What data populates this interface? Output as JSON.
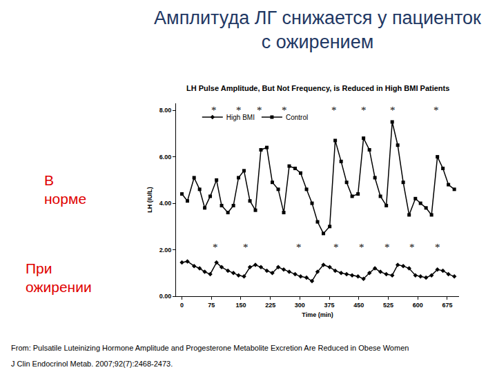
{
  "slide": {
    "title_lines": [
      "Амплитуда ЛГ снижается у пациенток",
      "с ожирением"
    ],
    "side_labels": [
      {
        "lines": [
          "В",
          "норме"
        ],
        "color": "#e00000"
      },
      {
        "lines": [
          "При",
          "ожирении"
        ],
        "color": "#e00000"
      }
    ],
    "citation": [
      "From: Pulsatile Luteinizing Hormone Amplitude and Progesterone Metabolite Excretion Are Reduced in Obese Women",
      "J Clin Endocrinol Metab. 2007;92(7):2468-2473."
    ]
  },
  "chart_data": {
    "type": "line",
    "title": "LH Pulse Amplitude, But Not Frequency, is Reduced in High BMI Patients",
    "x_label": "Time (min)",
    "y_label": "LH (IU/L)",
    "x": [
      0,
      14,
      31,
      45,
      58,
      72,
      88,
      101,
      117,
      131,
      144,
      158,
      173,
      187,
      201,
      216,
      230,
      245,
      259,
      273,
      288,
      302,
      317,
      331,
      345,
      360,
      376,
      390,
      405,
      419,
      433,
      448,
      462,
      477,
      491,
      505,
      520,
      535,
      549,
      563,
      578,
      594,
      607,
      621,
      635,
      650,
      664,
      678,
      693
    ],
    "series": [
      {
        "name": "High BMI",
        "color": "#000000",
        "marker": "diamond",
        "values": [
          1.45,
          1.5,
          1.3,
          1.2,
          1.05,
          0.95,
          1.45,
          1.25,
          1.1,
          1.0,
          0.9,
          0.85,
          1.25,
          1.35,
          1.25,
          1.1,
          1.0,
          1.25,
          1.15,
          1.05,
          0.95,
          0.85,
          0.8,
          0.65,
          1.05,
          1.35,
          1.25,
          1.1,
          1.0,
          0.95,
          0.9,
          0.85,
          0.75,
          1.0,
          1.2,
          1.05,
          0.95,
          0.9,
          1.35,
          1.3,
          1.2,
          0.9,
          0.85,
          0.8,
          0.9,
          1.15,
          1.1,
          0.95,
          0.85
        ]
      },
      {
        "name": "Control",
        "color": "#000000",
        "marker": "square",
        "values": [
          4.4,
          4.1,
          5.1,
          4.6,
          3.8,
          4.3,
          5.0,
          3.9,
          3.6,
          3.9,
          5.1,
          5.4,
          4.1,
          3.7,
          6.3,
          6.4,
          4.9,
          4.6,
          3.6,
          5.6,
          5.5,
          5.3,
          4.6,
          4.0,
          3.2,
          2.7,
          3.0,
          6.7,
          5.8,
          4.9,
          4.3,
          4.4,
          6.8,
          6.3,
          5.1,
          4.3,
          3.9,
          7.5,
          6.5,
          4.9,
          3.5,
          4.2,
          4.0,
          3.8,
          3.5,
          6.0,
          5.5,
          4.8,
          4.6
        ]
      }
    ],
    "xlim": [
      -15,
      705
    ],
    "xticks": [
      0,
      75,
      150,
      225,
      300,
      375,
      450,
      525,
      600,
      675
    ],
    "ylim": [
      0,
      8.3
    ],
    "yticks": [
      {
        "value": 0,
        "label": "0.00"
      },
      {
        "value": 2,
        "label": "2.00"
      },
      {
        "value": 4,
        "label": "4.00"
      },
      {
        "value": 6,
        "label": "6.00"
      },
      {
        "value": 8,
        "label": "8.00"
      }
    ],
    "grid": false,
    "legend": "top left",
    "annotations": [
      {
        "text": "*",
        "x": 81,
        "y": 8.0
      },
      {
        "text": "*",
        "x": 144,
        "y": 8.0
      },
      {
        "text": "*",
        "x": 198,
        "y": 8.0
      },
      {
        "text": "*",
        "x": 261,
        "y": 8.0
      },
      {
        "text": "*",
        "x": 387,
        "y": 8.0
      },
      {
        "text": "*",
        "x": 462,
        "y": 8.0
      },
      {
        "text": "*",
        "x": 536,
        "y": 8.0
      },
      {
        "text": "*",
        "x": 647,
        "y": 8.0
      },
      {
        "text": "*",
        "x": 85,
        "y": 2.1
      },
      {
        "text": "*",
        "x": 162,
        "y": 2.1
      },
      {
        "text": "*",
        "x": 297,
        "y": 2.1
      },
      {
        "text": "*",
        "x": 392,
        "y": 2.1
      },
      {
        "text": "*",
        "x": 457,
        "y": 2.1
      },
      {
        "text": "*",
        "x": 522,
        "y": 2.1
      },
      {
        "text": "*",
        "x": 585,
        "y": 2.1
      },
      {
        "text": "*",
        "x": 651,
        "y": 2.1
      }
    ]
  }
}
